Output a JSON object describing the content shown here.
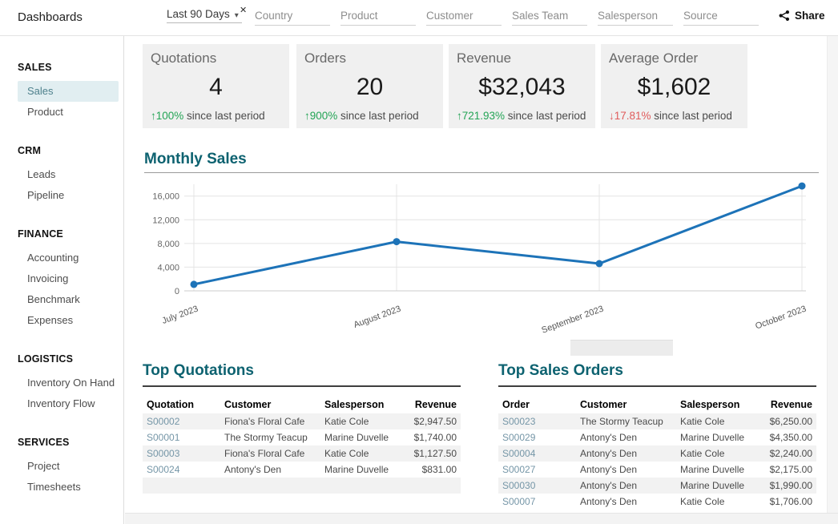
{
  "topbar": {
    "title": "Dashboards",
    "period_filter": {
      "value": "Last 90 Days"
    },
    "filters": [
      "Country",
      "Product",
      "Customer",
      "Sales Team",
      "Salesperson",
      "Source"
    ],
    "share_label": "Share"
  },
  "sidebar": {
    "sections": [
      {
        "label": "SALES",
        "items": [
          {
            "label": "Sales",
            "active": true
          },
          {
            "label": "Product"
          }
        ]
      },
      {
        "label": "CRM",
        "items": [
          {
            "label": "Leads"
          },
          {
            "label": "Pipeline"
          }
        ]
      },
      {
        "label": "FINANCE",
        "items": [
          {
            "label": "Accounting"
          },
          {
            "label": "Invoicing"
          },
          {
            "label": "Benchmark"
          },
          {
            "label": "Expenses"
          }
        ]
      },
      {
        "label": "LOGISTICS",
        "items": [
          {
            "label": "Inventory On Hand"
          },
          {
            "label": "Inventory Flow"
          }
        ]
      },
      {
        "label": "SERVICES",
        "items": [
          {
            "label": "Project"
          },
          {
            "label": "Timesheets"
          }
        ]
      }
    ]
  },
  "kpis": [
    {
      "title": "Quotations",
      "value": "4",
      "delta": "100%",
      "direction": "up",
      "suffix": "since last period"
    },
    {
      "title": "Orders",
      "value": "20",
      "delta": "900%",
      "direction": "up",
      "suffix": "since last period"
    },
    {
      "title": "Revenue",
      "value": "$32,043",
      "delta": "721.93%",
      "direction": "up",
      "suffix": "since last period"
    },
    {
      "title": "Average Order",
      "value": "$1,602",
      "delta": "17.81%",
      "direction": "down",
      "suffix": "since last period"
    }
  ],
  "chart_data": {
    "type": "line",
    "title": "Monthly Sales",
    "x": [
      "July 2023",
      "August 2023",
      "September 2023",
      "October 2023"
    ],
    "series": [
      {
        "name": "Monthly Sales",
        "values": [
          1100,
          8300,
          4600,
          17700
        ]
      }
    ],
    "yticks": [
      0,
      4000,
      8000,
      12000,
      16000
    ],
    "ylim": [
      0,
      18800
    ],
    "grid": true,
    "legend": "none",
    "line_color": "#1d73b8"
  },
  "tables": {
    "quotations": {
      "title": "Top Quotations",
      "headers": [
        "Quotation",
        "Customer",
        "Salesperson",
        "Revenue"
      ],
      "rows": [
        [
          "S00002",
          "Fiona's Floral Cafe",
          "Katie Cole",
          "$2,947.50"
        ],
        [
          "S00001",
          "The Stormy Teacup",
          "Marine Duvelle",
          "$1,740.00"
        ],
        [
          "S00003",
          "Fiona's Floral Cafe",
          "Katie Cole",
          "$1,127.50"
        ],
        [
          "S00024",
          "Antony's Den",
          "Marine Duvelle",
          "$831.00"
        ],
        [
          "",
          "",
          "",
          ""
        ]
      ]
    },
    "orders": {
      "title": "Top Sales Orders",
      "headers": [
        "Order",
        "Customer",
        "Salesperson",
        "Revenue"
      ],
      "rows": [
        [
          "S00023",
          "The Stormy Teacup",
          "Katie Cole",
          "$6,250.00"
        ],
        [
          "S00029",
          "Antony's Den",
          "Marine Duvelle",
          "$4,350.00"
        ],
        [
          "S00004",
          "Antony's Den",
          "Katie Cole",
          "$2,240.00"
        ],
        [
          "S00027",
          "Antony's Den",
          "Marine Duvelle",
          "$2,175.00"
        ],
        [
          "S00030",
          "Antony's Den",
          "Marine Duvelle",
          "$1,990.00"
        ],
        [
          "S00007",
          "Antony's Den",
          "Katie Cole",
          "$1,706.00"
        ]
      ]
    }
  },
  "colors": {
    "accent_teal": "#0d6270",
    "positive": "#23a455",
    "negative": "#e05b5b",
    "link": "#7596a7",
    "chart_line": "#1d73b8",
    "active_item_bg": "#e1eef1"
  }
}
